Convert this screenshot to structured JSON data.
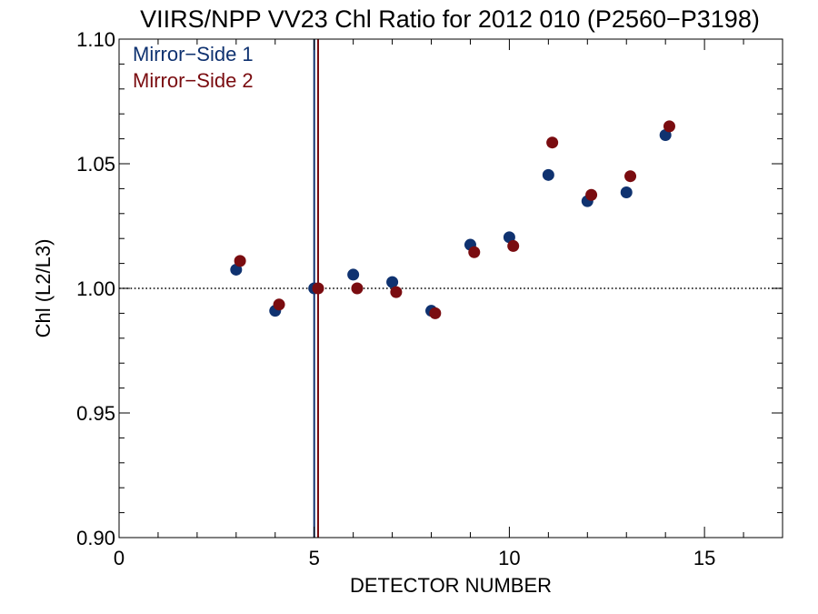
{
  "chart_data": {
    "type": "scatter",
    "title": "VIIRS/NPP VV23 Chl Ratio for 2012 010 (P2560−P3198)",
    "xlabel": "DETECTOR NUMBER",
    "ylabel": "Chl (L2/L3)",
    "xlim": [
      0,
      17
    ],
    "ylim": [
      0.9,
      1.1
    ],
    "x_ticks": [
      0,
      5,
      10,
      15
    ],
    "x_tick_labels": [
      "0",
      "5",
      "10",
      "15"
    ],
    "y_ticks": [
      0.9,
      0.95,
      1.0,
      1.05,
      1.1
    ],
    "y_tick_labels": [
      "0.90",
      "0.95",
      "1.00",
      "1.05",
      "1.10"
    ],
    "reference_line_y": 1.0,
    "reference_line_style": "dotted",
    "grid": false,
    "legend_position": "top-left",
    "series": [
      {
        "name": "Mirror−Side 1",
        "color": "#0f3270",
        "x": [
          3,
          4,
          5,
          6,
          7,
          8,
          9,
          10,
          11,
          12,
          13,
          14
        ],
        "y": [
          1.0075,
          0.991,
          1.0,
          1.0055,
          1.0025,
          0.991,
          1.0175,
          1.0205,
          1.0455,
          1.035,
          1.0385,
          1.0615
        ],
        "reference_vertical_line_x": 5.0
      },
      {
        "name": "Mirror−Side 2",
        "color": "#7a0c10",
        "x": [
          3.1,
          4.1,
          5.1,
          6.1,
          7.1,
          8.1,
          9.1,
          10.1,
          11.1,
          12.1,
          13.1,
          14.1
        ],
        "y": [
          1.011,
          0.9935,
          1.0,
          1.0,
          0.9985,
          0.99,
          1.0145,
          1.017,
          1.0585,
          1.0375,
          1.045,
          1.065
        ],
        "reference_vertical_line_x": 5.1
      }
    ]
  }
}
